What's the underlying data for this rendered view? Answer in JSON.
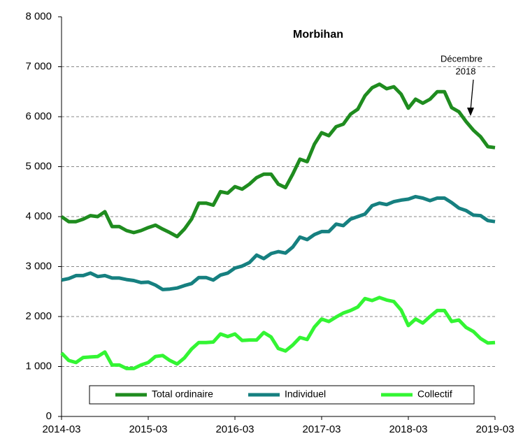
{
  "chart_data": {
    "type": "line",
    "title": "Morbihan",
    "annotation": [
      "Décembre",
      "2018"
    ],
    "x": [
      "2014-03",
      "2014-04",
      "2014-05",
      "2014-06",
      "2014-07",
      "2014-08",
      "2014-09",
      "2014-10",
      "2014-11",
      "2014-12",
      "2015-01",
      "2015-02",
      "2015-03",
      "2015-04",
      "2015-05",
      "2015-06",
      "2015-07",
      "2015-08",
      "2015-09",
      "2015-10",
      "2015-11",
      "2015-12",
      "2016-01",
      "2016-02",
      "2016-03",
      "2016-04",
      "2016-05",
      "2016-06",
      "2016-07",
      "2016-08",
      "2016-09",
      "2016-10",
      "2016-11",
      "2016-12",
      "2017-01",
      "2017-02",
      "2017-03",
      "2017-04",
      "2017-05",
      "2017-06",
      "2017-07",
      "2017-08",
      "2017-09",
      "2017-10",
      "2017-11",
      "2017-12",
      "2018-01",
      "2018-02",
      "2018-03",
      "2018-04",
      "2018-05",
      "2018-06",
      "2018-07",
      "2018-08",
      "2018-09",
      "2018-10",
      "2018-11",
      "2018-12",
      "2019-01",
      "2019-02",
      "2019-03"
    ],
    "xticks": [
      "2014-03",
      "2015-03",
      "2016-03",
      "2017-03",
      "2018-03",
      "2019-03"
    ],
    "ylim": [
      0,
      8000
    ],
    "yticks": [
      0,
      {
        "value": 1000,
        "label": "1 000"
      },
      {
        "value": 2000,
        "label": "2 000"
      },
      {
        "value": 3000,
        "label": "3 000"
      },
      {
        "value": 4000,
        "label": "4 000"
      },
      {
        "value": 5000,
        "label": "5 000"
      },
      {
        "value": 6000,
        "label": "6 000"
      },
      {
        "value": 7000,
        "label": "7 000"
      },
      {
        "value": 8000,
        "label": "8 000"
      }
    ],
    "grid": true,
    "series": [
      {
        "name": "Total ordinaire",
        "color": "#1f8c1f",
        "values": [
          4000,
          3900,
          3900,
          3950,
          4020,
          4000,
          4100,
          3800,
          3800,
          3720,
          3680,
          3720,
          3780,
          3830,
          3750,
          3680,
          3600,
          3750,
          3950,
          4270,
          4270,
          4230,
          4500,
          4470,
          4600,
          4550,
          4650,
          4780,
          4850,
          4850,
          4650,
          4580,
          4850,
          5150,
          5100,
          5450,
          5680,
          5620,
          5800,
          5850,
          6050,
          6150,
          6420,
          6580,
          6650,
          6560,
          6600,
          6450,
          6170,
          6350,
          6270,
          6350,
          6500,
          6500,
          6180,
          6100,
          5900,
          5730,
          5600,
          5400,
          5380
        ]
      },
      {
        "name": "Individuel",
        "color": "#168080",
        "values": [
          2730,
          2760,
          2820,
          2820,
          2870,
          2800,
          2820,
          2770,
          2770,
          2740,
          2720,
          2680,
          2690,
          2630,
          2540,
          2550,
          2570,
          2620,
          2660,
          2780,
          2780,
          2730,
          2830,
          2870,
          2970,
          3010,
          3080,
          3230,
          3160,
          3260,
          3300,
          3270,
          3390,
          3590,
          3540,
          3640,
          3700,
          3700,
          3850,
          3820,
          3950,
          4000,
          4050,
          4220,
          4270,
          4240,
          4300,
          4330,
          4350,
          4400,
          4370,
          4320,
          4370,
          4370,
          4280,
          4170,
          4120,
          4030,
          4020,
          3920,
          3900
        ]
      },
      {
        "name": "Collectif",
        "color": "#33f533",
        "values": [
          1270,
          1120,
          1080,
          1180,
          1190,
          1200,
          1290,
          1030,
          1030,
          960,
          960,
          1030,
          1080,
          1200,
          1220,
          1120,
          1050,
          1170,
          1350,
          1480,
          1480,
          1490,
          1650,
          1600,
          1650,
          1520,
          1530,
          1530,
          1680,
          1590,
          1360,
          1310,
          1430,
          1580,
          1540,
          1790,
          1950,
          1900,
          1990,
          2070,
          2120,
          2190,
          2360,
          2320,
          2380,
          2330,
          2300,
          2130,
          1820,
          1950,
          1870,
          2000,
          2120,
          2120,
          1900,
          1930,
          1780,
          1700,
          1560,
          1470,
          1480
        ]
      }
    ]
  }
}
